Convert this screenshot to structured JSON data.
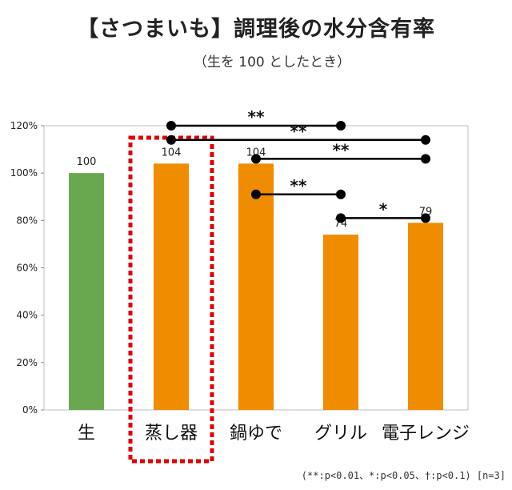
{
  "title": "【さつまいも】調理後の水分含有率",
  "subtitle": "（生を 100 としたとき）",
  "footnote": "(**:p<0.01、*:p<0.05、†:p<0.1) [n=3]",
  "chart_data": {
    "type": "bar",
    "categories": [
      "生",
      "蒸し器",
      "鍋ゆで",
      "グリル",
      "電子レンジ"
    ],
    "values": [
      100,
      104,
      104,
      74,
      79
    ],
    "data_labels": [
      "100",
      "104",
      "104",
      "74",
      "79"
    ],
    "colors": [
      "#6aa84f",
      "#f08c00",
      "#f08c00",
      "#f08c00",
      "#f08c00"
    ],
    "ylim": [
      0,
      120
    ],
    "yticks": [
      0,
      20,
      40,
      60,
      80,
      100,
      120
    ],
    "ytick_labels": [
      "0%",
      "20%",
      "40%",
      "60%",
      "80%",
      "100%",
      "120%"
    ],
    "highlight_category": "蒸し器",
    "highlight_color": "#e00000",
    "significance": [
      {
        "from": "蒸し器",
        "to": "グリル",
        "label": "**",
        "level": 120
      },
      {
        "from": "蒸し器",
        "to": "電子レンジ",
        "label": "**",
        "level": 114
      },
      {
        "from": "鍋ゆで",
        "to": "電子レンジ",
        "label": "**",
        "level": 106
      },
      {
        "from": "鍋ゆで",
        "to": "グリル",
        "label": "**",
        "level": 91
      },
      {
        "from": "グリル",
        "to": "電子レンジ",
        "label": "*",
        "level": 81
      }
    ]
  }
}
